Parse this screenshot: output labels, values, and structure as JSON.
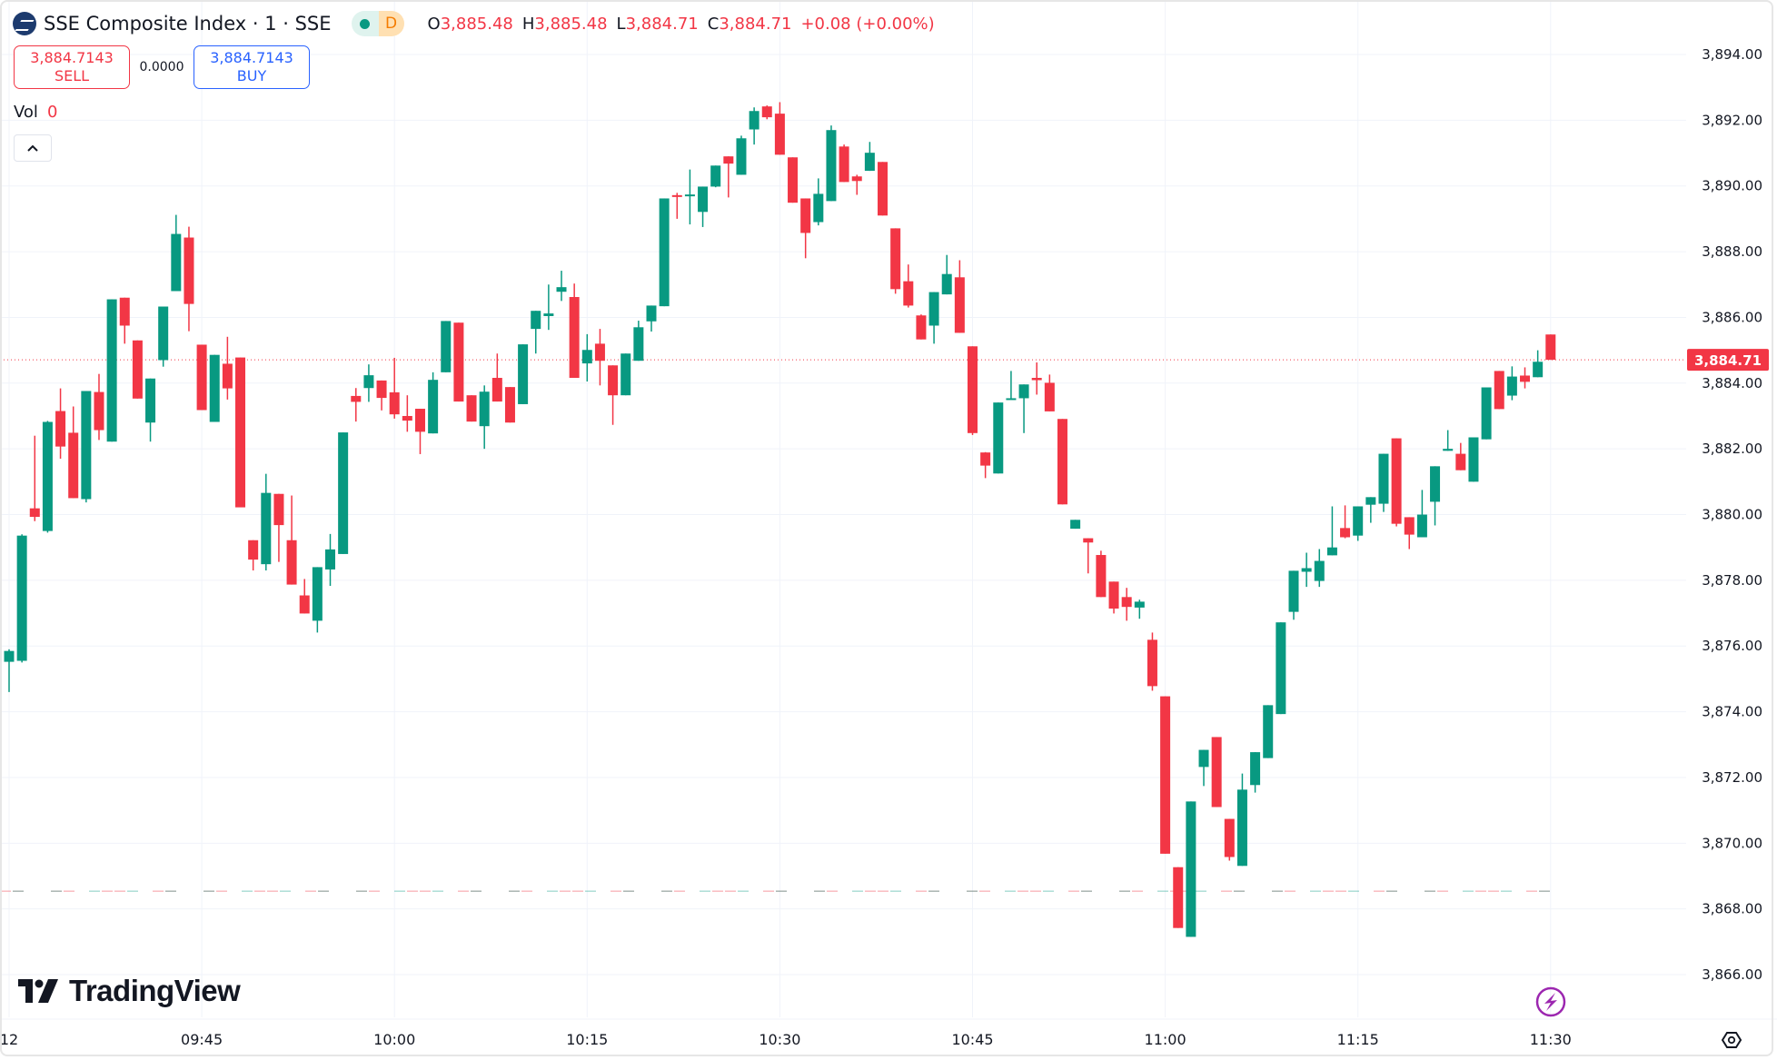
{
  "header": {
    "symbol_title": "SSE Composite Index · 1 · SSE",
    "market_status_badge": "D",
    "ohlc": [
      {
        "key": "O",
        "value": "3,885.48"
      },
      {
        "key": "H",
        "value": "3,885.48"
      },
      {
        "key": "L",
        "value": "3,884.71"
      },
      {
        "key": "C",
        "value": "3,884.71"
      }
    ],
    "change": "+0.08 (+0.00%)"
  },
  "trade": {
    "sell_price": "3,884.7143",
    "sell_label": "SELL",
    "spread": "0.0000",
    "buy_price": "3,884.7143",
    "buy_label": "BUY"
  },
  "volume": {
    "label": "Vol",
    "value": "0"
  },
  "collapse_icon": "chevron-up",
  "branding": "TradingView",
  "colors": {
    "up": "#089981",
    "down": "#F23645",
    "buy": "#2962FF",
    "text": "#131722",
    "grid": "#f0f3fa",
    "alert": "#9c27b0"
  },
  "chart_data": {
    "type": "candlestick",
    "interval": "1 minute",
    "ylim": [
      3865,
      3895
    ],
    "grid": true,
    "price_ticks": [
      "3,894.00",
      "3,892.00",
      "3,890.00",
      "3,888.00",
      "3,886.00",
      "3,884.00",
      "3,882.00",
      "3,880.00",
      "3,878.00",
      "3,876.00",
      "3,874.00",
      "3,872.00",
      "3,870.00",
      "3,868.00",
      "3,866.00"
    ],
    "price_tick_values": [
      3894,
      3892,
      3890,
      3888,
      3886,
      3884,
      3882,
      3880,
      3878,
      3876,
      3874,
      3872,
      3870,
      3868,
      3866
    ],
    "time_ticks": [
      {
        "label": "12",
        "time": "09:30"
      },
      {
        "label": "09:45",
        "time": "09:45"
      },
      {
        "label": "10:00",
        "time": "10:00"
      },
      {
        "label": "10:15",
        "time": "10:15"
      },
      {
        "label": "10:30",
        "time": "10:30"
      },
      {
        "label": "10:45",
        "time": "10:45"
      },
      {
        "label": "11:00",
        "time": "11:00"
      },
      {
        "label": "11:15",
        "time": "11:15"
      },
      {
        "label": "11:30",
        "time": "11:30"
      }
    ],
    "last_price": {
      "label": "3,884.71",
      "value": 3884.71
    },
    "reference_line_value": 3868.54,
    "candles_columns": [
      "time",
      "open",
      "high",
      "low",
      "close"
    ],
    "candles": [
      [
        "09:30",
        3875.52,
        3875.9,
        3874.6,
        3875.85
      ],
      [
        "09:31",
        3875.55,
        3879.4,
        3875.5,
        3879.36
      ],
      [
        "09:32",
        3880.19,
        3882.4,
        3879.8,
        3879.93
      ],
      [
        "09:33",
        3879.5,
        3882.85,
        3879.45,
        3882.82
      ],
      [
        "09:34",
        3883.15,
        3883.84,
        3881.7,
        3882.07
      ],
      [
        "09:35",
        3882.49,
        3883.29,
        3880.5,
        3880.5
      ],
      [
        "09:36",
        3880.47,
        3883.76,
        3880.37,
        3883.76
      ],
      [
        "09:37",
        3883.73,
        3884.28,
        3882.27,
        3882.57
      ],
      [
        "09:38",
        3882.22,
        3886.55,
        3882.22,
        3886.55
      ],
      [
        "09:39",
        3886.6,
        3886.6,
        3885.2,
        3885.75
      ],
      [
        "09:40",
        3885.3,
        3885.3,
        3883.53,
        3883.53
      ],
      [
        "09:41",
        3882.8,
        3884.14,
        3882.22,
        3884.14
      ],
      [
        "09:42",
        3884.7,
        3886.33,
        3884.5,
        3886.33
      ],
      [
        "09:43",
        3886.8,
        3889.12,
        3886.8,
        3888.54
      ],
      [
        "09:44",
        3888.43,
        3888.76,
        3885.58,
        3886.41
      ],
      [
        "09:45",
        3885.17,
        3885.17,
        3883.18,
        3883.18
      ],
      [
        "09:46",
        3882.82,
        3884.86,
        3882.82,
        3884.86
      ],
      [
        "09:47",
        3884.59,
        3885.41,
        3883.5,
        3883.84
      ],
      [
        "09:48",
        3884.78,
        3884.78,
        3880.22,
        3880.22
      ],
      [
        "09:49",
        3879.22,
        3879.22,
        3878.3,
        3878.63
      ],
      [
        "09:50",
        3878.49,
        3881.24,
        3878.3,
        3880.66
      ],
      [
        "09:51",
        3880.63,
        3880.63,
        3878.56,
        3879.68
      ],
      [
        "09:52",
        3879.22,
        3880.58,
        3877.87,
        3877.87
      ],
      [
        "09:53",
        3877.54,
        3878.04,
        3876.99,
        3876.99
      ],
      [
        "09:54",
        3876.77,
        3878.4,
        3876.41,
        3878.4
      ],
      [
        "09:55",
        3878.33,
        3879.41,
        3877.83,
        3878.94
      ],
      [
        "09:56",
        3878.8,
        3882.5,
        3878.8,
        3882.5
      ],
      [
        "09:57",
        3883.61,
        3883.85,
        3882.83,
        3883.43
      ],
      [
        "09:58",
        3883.85,
        3884.57,
        3883.43,
        3884.24
      ],
      [
        "09:59",
        3884.08,
        3884.08,
        3883.17,
        3883.55
      ],
      [
        "10:00",
        3883.72,
        3884.77,
        3882.92,
        3883.05
      ],
      [
        "10:01",
        3883.0,
        3883.63,
        3882.52,
        3882.86
      ],
      [
        "10:02",
        3883.22,
        3883.22,
        3881.84,
        3882.52
      ],
      [
        "10:03",
        3882.47,
        3884.33,
        3882.47,
        3884.1
      ],
      [
        "10:04",
        3884.33,
        3885.89,
        3884.33,
        3885.89
      ],
      [
        "10:05",
        3885.84,
        3885.84,
        3883.44,
        3883.44
      ],
      [
        "10:06",
        3883.63,
        3883.63,
        3882.83,
        3882.83
      ],
      [
        "10:07",
        3882.69,
        3883.93,
        3882.0,
        3883.74
      ],
      [
        "10:08",
        3884.16,
        3884.9,
        3883.44,
        3883.44
      ],
      [
        "10:09",
        3883.88,
        3883.88,
        3882.8,
        3882.8
      ],
      [
        "10:10",
        3883.36,
        3885.18,
        3883.36,
        3885.18
      ],
      [
        "10:11",
        3885.65,
        3886.2,
        3884.9,
        3886.2
      ],
      [
        "10:12",
        3886.04,
        3887.0,
        3885.62,
        3886.12
      ],
      [
        "10:13",
        3886.78,
        3887.42,
        3886.5,
        3886.92
      ],
      [
        "10:14",
        3886.62,
        3887.03,
        3884.16,
        3884.16
      ],
      [
        "10:15",
        3884.6,
        3885.49,
        3884.05,
        3885.01
      ],
      [
        "10:16",
        3885.2,
        3885.65,
        3883.93,
        3884.68
      ],
      [
        "10:17",
        3884.54,
        3884.54,
        3882.73,
        3883.63
      ],
      [
        "10:18",
        3883.63,
        3884.9,
        3883.63,
        3884.9
      ],
      [
        "10:19",
        3884.68,
        3885.9,
        3884.68,
        3885.7
      ],
      [
        "10:20",
        3885.88,
        3886.36,
        3885.57,
        3886.36
      ],
      [
        "10:21",
        3886.34,
        3889.62,
        3886.34,
        3889.62
      ],
      [
        "10:22",
        3889.72,
        3889.79,
        3889.0,
        3889.68
      ],
      [
        "10:23",
        3889.7,
        3890.5,
        3888.83,
        3889.74
      ],
      [
        "10:24",
        3889.21,
        3889.98,
        3888.75,
        3889.98
      ],
      [
        "10:25",
        3889.98,
        3890.62,
        3889.96,
        3890.62
      ],
      [
        "10:26",
        3890.9,
        3890.9,
        3889.65,
        3890.68
      ],
      [
        "10:27",
        3890.34,
        3891.53,
        3890.34,
        3891.45
      ],
      [
        "10:28",
        3891.72,
        3892.39,
        3891.26,
        3892.28
      ],
      [
        "10:29",
        3892.42,
        3892.45,
        3892.03,
        3892.09
      ],
      [
        "10:30",
        3892.2,
        3892.55,
        3890.95,
        3890.95
      ],
      [
        "10:31",
        3890.87,
        3890.87,
        3889.49,
        3889.49
      ],
      [
        "10:32",
        3889.62,
        3889.62,
        3887.8,
        3888.57
      ],
      [
        "10:33",
        3888.9,
        3890.23,
        3888.8,
        3889.76
      ],
      [
        "10:34",
        3889.54,
        3891.84,
        3889.54,
        3891.7
      ],
      [
        "10:35",
        3891.2,
        3891.26,
        3890.12,
        3890.12
      ],
      [
        "10:36",
        3890.29,
        3890.34,
        3889.73,
        3890.15
      ],
      [
        "10:37",
        3890.46,
        3891.34,
        3890.46,
        3891.01
      ],
      [
        "10:38",
        3890.73,
        3890.73,
        3889.1,
        3889.1
      ],
      [
        "10:39",
        3888.71,
        3888.71,
        3886.72,
        3886.86
      ],
      [
        "10:40",
        3887.1,
        3887.61,
        3886.3,
        3886.36
      ],
      [
        "10:41",
        3886.06,
        3886.09,
        3885.33,
        3885.33
      ],
      [
        "10:42",
        3885.75,
        3886.77,
        3885.2,
        3886.77
      ],
      [
        "10:43",
        3886.7,
        3887.9,
        3886.7,
        3887.32
      ],
      [
        "10:44",
        3887.22,
        3887.74,
        3885.53,
        3885.53
      ],
      [
        "10:45",
        3885.12,
        3885.12,
        3882.42,
        3882.48
      ],
      [
        "10:46",
        3881.89,
        3881.9,
        3881.11,
        3881.49
      ],
      [
        "10:47",
        3881.25,
        3883.41,
        3881.25,
        3883.41
      ],
      [
        "10:48",
        3883.5,
        3884.37,
        3883.5,
        3883.54
      ],
      [
        "10:49",
        3883.54,
        3883.96,
        3882.48,
        3883.96
      ],
      [
        "10:50",
        3884.16,
        3884.63,
        3883.65,
        3884.09
      ],
      [
        "10:51",
        3884.01,
        3884.26,
        3883.14,
        3883.14
      ],
      [
        "10:52",
        3882.91,
        3882.91,
        3880.31,
        3880.31
      ],
      [
        "10:53",
        3879.57,
        3879.84,
        3879.57,
        3879.84
      ],
      [
        "10:54",
        3879.28,
        3879.28,
        3878.21,
        3879.15
      ],
      [
        "10:55",
        3878.77,
        3878.9,
        3877.49,
        3877.49
      ],
      [
        "10:56",
        3877.96,
        3877.96,
        3876.99,
        3877.14
      ],
      [
        "10:57",
        3877.49,
        3877.77,
        3876.77,
        3877.19
      ],
      [
        "10:58",
        3877.17,
        3877.41,
        3876.83,
        3877.35
      ],
      [
        "10:59",
        3876.19,
        3876.41,
        3874.64,
        3874.78
      ],
      [
        "11:00",
        3874.47,
        3874.47,
        3869.68,
        3869.68
      ],
      [
        "11:01",
        3869.27,
        3869.27,
        3867.42,
        3867.42
      ],
      [
        "11:02",
        3867.15,
        3871.27,
        3867.15,
        3871.27
      ],
      [
        "11:03",
        3872.32,
        3872.84,
        3871.74,
        3872.84
      ],
      [
        "11:04",
        3873.23,
        3873.23,
        3871.1,
        3871.1
      ],
      [
        "11:05",
        3870.74,
        3870.74,
        3869.47,
        3869.58
      ],
      [
        "11:06",
        3869.31,
        3872.12,
        3869.31,
        3871.63
      ],
      [
        "11:07",
        3871.77,
        3872.77,
        3871.54,
        3872.77
      ],
      [
        "11:08",
        3872.59,
        3874.2,
        3872.59,
        3874.2
      ],
      [
        "11:09",
        3873.93,
        3876.72,
        3873.93,
        3876.72
      ],
      [
        "11:10",
        3877.04,
        3878.29,
        3876.8,
        3878.29
      ],
      [
        "11:11",
        3878.26,
        3878.84,
        3877.8,
        3878.37
      ],
      [
        "11:12",
        3877.98,
        3878.95,
        3877.8,
        3878.59
      ],
      [
        "11:13",
        3878.76,
        3880.25,
        3878.76,
        3879.0
      ],
      [
        "11:14",
        3879.59,
        3880.28,
        3879.28,
        3879.31
      ],
      [
        "11:15",
        3879.36,
        3880.25,
        3879.2,
        3880.25
      ],
      [
        "11:16",
        3880.3,
        3880.53,
        3879.75,
        3880.53
      ],
      [
        "11:17",
        3880.33,
        3881.85,
        3880.08,
        3881.85
      ],
      [
        "11:18",
        3882.32,
        3882.32,
        3879.64,
        3879.72
      ],
      [
        "11:19",
        3879.92,
        3879.92,
        3878.95,
        3879.39
      ],
      [
        "11:20",
        3879.31,
        3880.75,
        3879.31,
        3880.0
      ],
      [
        "11:21",
        3880.39,
        3881.47,
        3879.67,
        3881.47
      ],
      [
        "11:22",
        3881.94,
        3882.57,
        3881.94,
        3882.0
      ],
      [
        "11:23",
        3881.85,
        3882.18,
        3881.35,
        3881.35
      ],
      [
        "11:24",
        3881.0,
        3882.35,
        3881.0,
        3882.35
      ],
      [
        "11:25",
        3882.29,
        3883.87,
        3882.29,
        3883.87
      ],
      [
        "11:26",
        3884.37,
        3884.37,
        3883.21,
        3883.21
      ],
      [
        "11:27",
        3883.62,
        3884.51,
        3883.48,
        3884.2
      ],
      [
        "11:28",
        3884.23,
        3884.48,
        3883.84,
        3884.04
      ],
      [
        "11:29",
        3884.18,
        3885.0,
        3884.18,
        3884.65
      ],
      [
        "11:30",
        3885.48,
        3885.48,
        3884.71,
        3884.71
      ]
    ]
  }
}
